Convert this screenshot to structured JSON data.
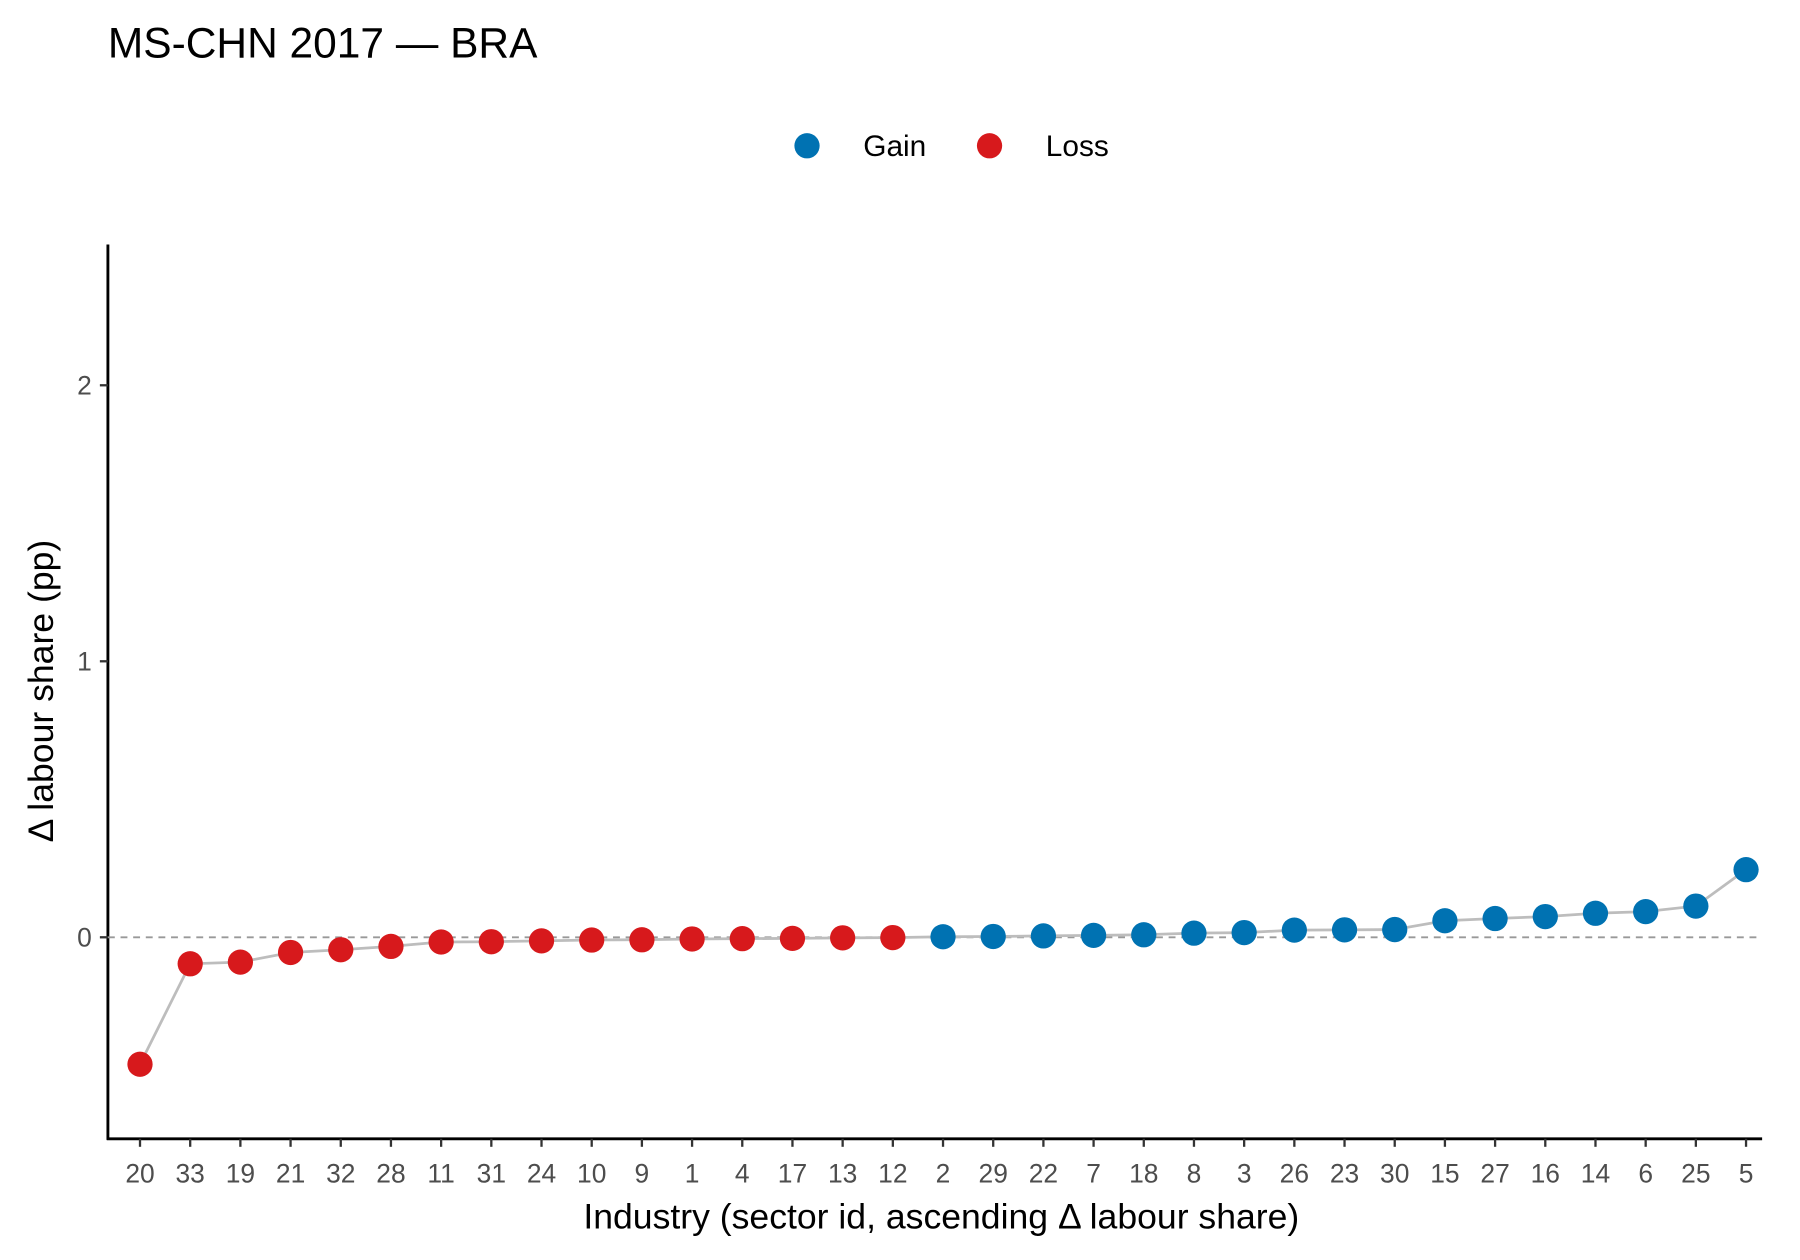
{
  "chart_data": {
    "type": "scatter",
    "title": "MS-CHN 2017 — BRA",
    "x_label": "Industry (sector id, ascending Δ labour share)",
    "y_label": "Δ labour share (pp)",
    "categories": [
      "20",
      "33",
      "19",
      "21",
      "32",
      "28",
      "11",
      "31",
      "24",
      "10",
      "9",
      "1",
      "4",
      "17",
      "13",
      "12",
      "2",
      "29",
      "22",
      "7",
      "18",
      "8",
      "3",
      "26",
      "23",
      "30",
      "15",
      "27",
      "16",
      "14",
      "6",
      "25",
      "5"
    ],
    "series": [
      {
        "name": "Gain",
        "color": "#0072b2",
        "values": [
          null,
          null,
          null,
          null,
          null,
          null,
          null,
          null,
          null,
          null,
          null,
          null,
          null,
          null,
          null,
          null,
          0.002,
          0.003,
          0.005,
          0.007,
          0.009,
          0.015,
          0.017,
          0.026,
          0.027,
          0.028,
          0.06,
          0.068,
          0.075,
          0.087,
          0.093,
          0.113,
          0.245
        ]
      },
      {
        "name": "Loss",
        "color": "#d7191c",
        "values": [
          -0.46,
          -0.096,
          -0.09,
          -0.055,
          -0.045,
          -0.033,
          -0.017,
          -0.016,
          -0.013,
          -0.01,
          -0.009,
          -0.006,
          -0.005,
          -0.004,
          -0.002,
          -0.001,
          null,
          null,
          null,
          null,
          null,
          null,
          null,
          null,
          null,
          null,
          null,
          null,
          null,
          null,
          null,
          null,
          null
        ]
      }
    ],
    "connector_color": "#bdbdbd",
    "reference_line": 0,
    "ylim": [
      -0.73,
      2.51
    ],
    "yticks": [
      0,
      1,
      2
    ],
    "grid": false,
    "legend_position": "top"
  }
}
